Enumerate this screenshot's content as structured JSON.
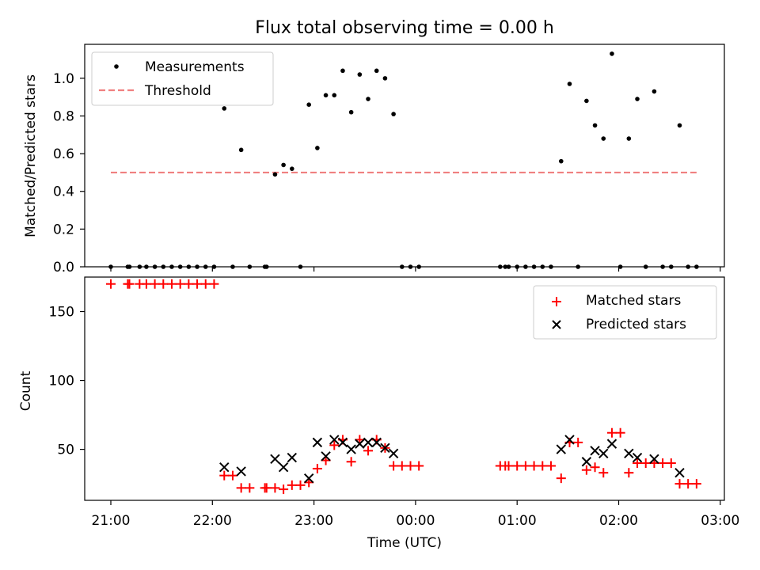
{
  "title": "Flux total observing time = 0.00 h",
  "colors": {
    "measurements": "#000000",
    "threshold": "#f08080",
    "matched": "#ff0000",
    "predicted": "#000000"
  },
  "chart_data": [
    {
      "type": "scatter",
      "panel": "top",
      "ylabel": "Matched/Predicted stars",
      "xlim": [
        "21:00",
        "03:00"
      ],
      "ylim": [
        0,
        1.18
      ],
      "y_ticks": [
        "0.0",
        "0.2",
        "0.4",
        "0.6",
        "0.8",
        "1.0"
      ],
      "legend_position": "upper-left",
      "series": [
        {
          "name": "Measurements",
          "marker": "dot",
          "points": [
            [
              "21:00",
              0
            ],
            [
              "21:10",
              0
            ],
            [
              "21:11",
              0
            ],
            [
              "21:17",
              0
            ],
            [
              "21:21",
              0
            ],
            [
              "21:26",
              0
            ],
            [
              "21:31",
              0
            ],
            [
              "21:36",
              0
            ],
            [
              "21:41",
              0
            ],
            [
              "21:46",
              0
            ],
            [
              "21:51",
              0
            ],
            [
              "21:56",
              0
            ],
            [
              "22:01",
              0
            ],
            [
              "22:07",
              0.84
            ],
            [
              "22:12",
              0
            ],
            [
              "22:17",
              0.62
            ],
            [
              "22:22",
              0
            ],
            [
              "22:31",
              0
            ],
            [
              "22:32",
              0
            ],
            [
              "22:37",
              0.49
            ],
            [
              "22:42",
              0.54
            ],
            [
              "22:47",
              0.52
            ],
            [
              "22:52",
              0
            ],
            [
              "22:57",
              0.86
            ],
            [
              "23:02",
              0.63
            ],
            [
              "23:07",
              0.91
            ],
            [
              "23:12",
              0.91
            ],
            [
              "23:17",
              1.04
            ],
            [
              "23:22",
              0.82
            ],
            [
              "23:27",
              1.02
            ],
            [
              "23:32",
              0.89
            ],
            [
              "23:37",
              1.04
            ],
            [
              "23:42",
              1.0
            ],
            [
              "23:47",
              0.81
            ],
            [
              "23:52",
              0
            ],
            [
              "23:57",
              0
            ],
            [
              "00:02",
              0
            ],
            [
              "00:50",
              0
            ],
            [
              "00:53",
              0
            ],
            [
              "00:55",
              0
            ],
            [
              "01:00",
              0
            ],
            [
              "01:05",
              0
            ],
            [
              "01:10",
              0
            ],
            [
              "01:15",
              0
            ],
            [
              "01:20",
              0
            ],
            [
              "01:26",
              0.56
            ],
            [
              "01:31",
              0.97
            ],
            [
              "01:36",
              0
            ],
            [
              "01:41",
              0.88
            ],
            [
              "01:46",
              0.75
            ],
            [
              "01:51",
              0.68
            ],
            [
              "01:56",
              1.13
            ],
            [
              "02:01",
              0
            ],
            [
              "02:06",
              0.68
            ],
            [
              "02:11",
              0.89
            ],
            [
              "02:16",
              0
            ],
            [
              "02:21",
              0.93
            ],
            [
              "02:26",
              0
            ],
            [
              "02:31",
              0
            ],
            [
              "02:36",
              0.75
            ],
            [
              "02:41",
              0
            ],
            [
              "02:46",
              0
            ]
          ]
        },
        {
          "name": "Threshold",
          "marker": "dashed-line",
          "points": [
            [
              "21:00",
              0.5
            ],
            [
              "02:46",
              0.5
            ]
          ]
        }
      ]
    },
    {
      "type": "scatter",
      "panel": "bottom",
      "xlabel": "Time (UTC)",
      "ylabel": "Count",
      "xlim": [
        "21:00",
        "03:00"
      ],
      "ylim": [
        13,
        175
      ],
      "x_ticks": [
        "21:00",
        "22:00",
        "23:00",
        "00:00",
        "01:00",
        "02:00",
        "03:00"
      ],
      "y_ticks": [
        "50",
        "100",
        "150"
      ],
      "legend_position": "upper-right",
      "series": [
        {
          "name": "Matched stars",
          "marker": "plus",
          "points": [
            [
              "21:00",
              170
            ],
            [
              "21:10",
              170
            ],
            [
              "21:11",
              170
            ],
            [
              "21:17",
              170
            ],
            [
              "21:21",
              170
            ],
            [
              "21:26",
              170
            ],
            [
              "21:31",
              170
            ],
            [
              "21:36",
              170
            ],
            [
              "21:41",
              170
            ],
            [
              "21:46",
              170
            ],
            [
              "21:51",
              170
            ],
            [
              "21:56",
              170
            ],
            [
              "22:01",
              170
            ],
            [
              "22:07",
              31
            ],
            [
              "22:12",
              31
            ],
            [
              "22:17",
              22
            ],
            [
              "22:22",
              22
            ],
            [
              "22:31",
              22
            ],
            [
              "22:32",
              22
            ],
            [
              "22:37",
              22
            ],
            [
              "22:42",
              21
            ],
            [
              "22:47",
              24
            ],
            [
              "22:52",
              24
            ],
            [
              "22:57",
              26
            ],
            [
              "23:02",
              36
            ],
            [
              "23:07",
              42
            ],
            [
              "23:12",
              53
            ],
            [
              "23:17",
              57
            ],
            [
              "23:22",
              41
            ],
            [
              "23:27",
              57
            ],
            [
              "23:32",
              49
            ],
            [
              "23:37",
              57
            ],
            [
              "23:42",
              51
            ],
            [
              "23:47",
              38
            ],
            [
              "23:52",
              38
            ],
            [
              "23:57",
              38
            ],
            [
              "00:02",
              38
            ],
            [
              "00:50",
              38
            ],
            [
              "00:53",
              38
            ],
            [
              "00:55",
              38
            ],
            [
              "01:00",
              38
            ],
            [
              "01:05",
              38
            ],
            [
              "01:10",
              38
            ],
            [
              "01:15",
              38
            ],
            [
              "01:20",
              38
            ],
            [
              "01:26",
              29
            ],
            [
              "01:31",
              55
            ],
            [
              "01:36",
              55
            ],
            [
              "01:41",
              35
            ],
            [
              "01:46",
              37
            ],
            [
              "01:51",
              33
            ],
            [
              "01:56",
              62
            ],
            [
              "02:01",
              62
            ],
            [
              "02:06",
              33
            ],
            [
              "02:11",
              40
            ],
            [
              "02:16",
              40
            ],
            [
              "02:21",
              40
            ],
            [
              "02:26",
              40
            ],
            [
              "02:31",
              40
            ],
            [
              "02:36",
              25
            ],
            [
              "02:41",
              25
            ],
            [
              "02:46",
              25
            ]
          ]
        },
        {
          "name": "Predicted stars",
          "marker": "x",
          "points": [
            [
              "22:07",
              37
            ],
            [
              "22:17",
              34
            ],
            [
              "22:37",
              43
            ],
            [
              "22:42",
              37
            ],
            [
              "22:47",
              44
            ],
            [
              "22:57",
              29
            ],
            [
              "23:02",
              55
            ],
            [
              "23:07",
              45
            ],
            [
              "23:12",
              57
            ],
            [
              "23:17",
              55
            ],
            [
              "23:22",
              50
            ],
            [
              "23:27",
              54
            ],
            [
              "23:32",
              55
            ],
            [
              "23:37",
              55
            ],
            [
              "23:42",
              51
            ],
            [
              "23:47",
              47
            ],
            [
              "01:26",
              50
            ],
            [
              "01:31",
              57
            ],
            [
              "01:41",
              41
            ],
            [
              "01:46",
              49
            ],
            [
              "01:51",
              47
            ],
            [
              "01:56",
              54
            ],
            [
              "02:06",
              47
            ],
            [
              "02:11",
              44
            ],
            [
              "02:21",
              43
            ],
            [
              "02:36",
              33
            ]
          ]
        }
      ]
    }
  ]
}
